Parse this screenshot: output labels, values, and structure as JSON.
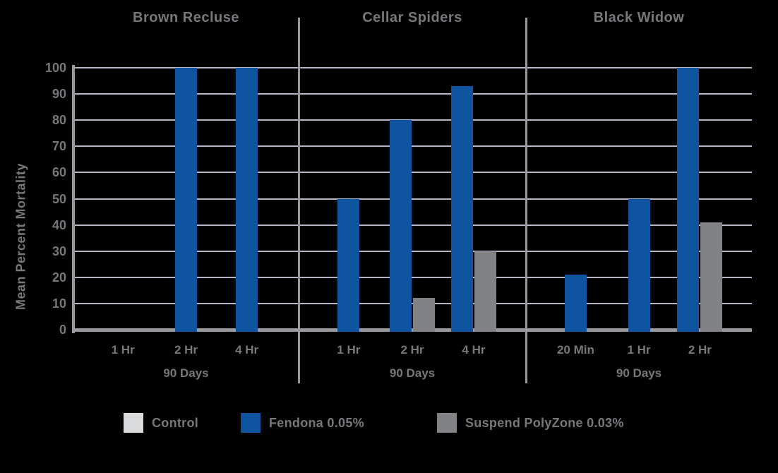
{
  "figure": {
    "ylabel": "Mean Percent Mortality"
  },
  "colors": {
    "background": "#000000",
    "control": "#d9dadb",
    "fendona": "#0f54a1",
    "suspend": "#808285",
    "gridline": "#b5b6c6",
    "axis": "#98999c",
    "text": "#76787b"
  },
  "legend": [
    {
      "label": "Control",
      "color_key": "control"
    },
    {
      "label": "Fendona 0.05%",
      "color_key": "fendona"
    },
    {
      "label": "Suspend PolyZone 0.03%",
      "color_key": "suspend"
    }
  ],
  "chart_data": {
    "type": "bar",
    "title": "",
    "ylabel": "Mean Percent Mortality",
    "ylim": [
      0,
      100
    ],
    "ytick_step": 10,
    "grid": true,
    "legend_position": "bottom",
    "panels": [
      {
        "title": "Brown Recluse",
        "sub": "90 Days",
        "categories": [
          "1 Hr",
          "2 Hr",
          "4 Hr"
        ],
        "series": [
          {
            "name": "Control",
            "color_key": "control",
            "values": [
              0,
              0,
              0
            ]
          },
          {
            "name": "Fendona 0.05%",
            "color_key": "fendona",
            "values": [
              0,
              100,
              100
            ]
          },
          {
            "name": "Suspend PolyZone 0.03%",
            "color_key": "suspend",
            "values": [
              0,
              0,
              0
            ]
          }
        ]
      },
      {
        "title": "Cellar Spiders",
        "sub": "90 Days",
        "categories": [
          "1 Hr",
          "2 Hr",
          "4 Hr"
        ],
        "series": [
          {
            "name": "Control",
            "color_key": "control",
            "values": [
              0,
              0,
              0
            ]
          },
          {
            "name": "Fendona 0.05%",
            "color_key": "fendona",
            "values": [
              50,
              80,
              93
            ]
          },
          {
            "name": "Suspend PolyZone 0.03%",
            "color_key": "suspend",
            "values": [
              0,
              12,
              30
            ]
          }
        ]
      },
      {
        "title": "Black Widow",
        "sub": "90 Days",
        "categories": [
          "20 Min",
          "1 Hr",
          "2 Hr"
        ],
        "series": [
          {
            "name": "Control",
            "color_key": "control",
            "values": [
              0,
              0,
              0
            ]
          },
          {
            "name": "Fendona 0.05%",
            "color_key": "fendona",
            "values": [
              21,
              50,
              100
            ]
          },
          {
            "name": "Suspend PolyZone 0.03%",
            "color_key": "suspend",
            "values": [
              0,
              0,
              41
            ]
          }
        ]
      }
    ]
  }
}
